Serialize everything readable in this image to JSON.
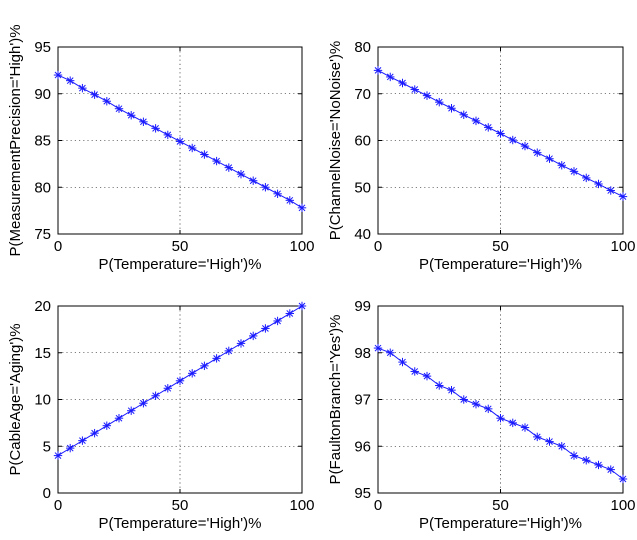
{
  "chart_data": [
    {
      "type": "line",
      "xlabel": "P(Temperature='High')%",
      "ylabel": "P(MeasurementPrecision='High')%",
      "xlim": [
        0,
        100
      ],
      "ylim": [
        75,
        95
      ],
      "xticks": [
        "0",
        "50",
        "100"
      ],
      "yticks": [
        "75",
        "80",
        "85",
        "90",
        "95"
      ],
      "grid": true,
      "x": [
        0,
        5,
        10,
        15,
        20,
        25,
        30,
        35,
        40,
        45,
        50,
        55,
        60,
        65,
        70,
        75,
        80,
        85,
        90,
        95,
        100
      ],
      "series": [
        {
          "values": [
            92.0,
            91.4,
            90.6,
            89.9,
            89.2,
            88.4,
            87.7,
            87.0,
            86.3,
            85.6,
            84.9,
            84.2,
            83.5,
            82.8,
            82.1,
            81.4,
            80.7,
            80.0,
            79.3,
            78.6,
            77.8
          ]
        }
      ]
    },
    {
      "type": "line",
      "xlabel": "P(Temperature='High')%",
      "ylabel": "P(ChannelNoise='NoNoise')%",
      "xlim": [
        0,
        100
      ],
      "ylim": [
        40,
        80
      ],
      "xticks": [
        "0",
        "50",
        "100"
      ],
      "yticks": [
        "40",
        "50",
        "60",
        "70",
        "80"
      ],
      "grid": true,
      "x": [
        0,
        5,
        10,
        15,
        20,
        25,
        30,
        35,
        40,
        45,
        50,
        55,
        60,
        65,
        70,
        75,
        80,
        85,
        90,
        95,
        100
      ],
      "series": [
        {
          "values": [
            75.0,
            73.6,
            72.3,
            70.9,
            69.6,
            68.2,
            66.9,
            65.5,
            64.2,
            62.8,
            61.5,
            60.1,
            58.8,
            57.4,
            56.1,
            54.7,
            53.4,
            52.0,
            50.7,
            49.3,
            48.0
          ]
        }
      ]
    },
    {
      "type": "line",
      "xlabel": "P(Temperature='High')%",
      "ylabel": "P(CableAge='Aging')%",
      "xlim": [
        0,
        100
      ],
      "ylim": [
        0,
        20
      ],
      "xticks": [
        "0",
        "50",
        "100"
      ],
      "yticks": [
        "0",
        "5",
        "10",
        "15",
        "20"
      ],
      "grid": true,
      "x": [
        0,
        5,
        10,
        15,
        20,
        25,
        30,
        35,
        40,
        45,
        50,
        55,
        60,
        65,
        70,
        75,
        80,
        85,
        90,
        95,
        100
      ],
      "series": [
        {
          "values": [
            4.0,
            4.8,
            5.6,
            6.4,
            7.2,
            8.0,
            8.8,
            9.6,
            10.4,
            11.2,
            12.0,
            12.8,
            13.6,
            14.4,
            15.2,
            16.0,
            16.8,
            17.6,
            18.4,
            19.2,
            20.0
          ]
        }
      ]
    },
    {
      "type": "line",
      "xlabel": "P(Temperature='High')%",
      "ylabel": "P(FaultonBranch='Yes')%",
      "xlim": [
        0,
        100
      ],
      "ylim": [
        95,
        99
      ],
      "xticks": [
        "0",
        "50",
        "100"
      ],
      "yticks": [
        "95",
        "96",
        "97",
        "98",
        "99"
      ],
      "grid": true,
      "x": [
        0,
        5,
        10,
        15,
        20,
        25,
        30,
        35,
        40,
        45,
        50,
        55,
        60,
        65,
        70,
        75,
        80,
        85,
        90,
        95,
        100
      ],
      "series": [
        {
          "values": [
            98.1,
            98.0,
            97.8,
            97.6,
            97.5,
            97.3,
            97.2,
            97.0,
            96.9,
            96.8,
            96.6,
            96.5,
            96.4,
            96.2,
            96.1,
            96.0,
            95.8,
            95.7,
            95.6,
            95.5,
            95.3
          ]
        }
      ]
    }
  ],
  "colors": {
    "series": "#1a1aff",
    "axis": "#000000",
    "grid": "#000000"
  },
  "marker": "asterisk"
}
